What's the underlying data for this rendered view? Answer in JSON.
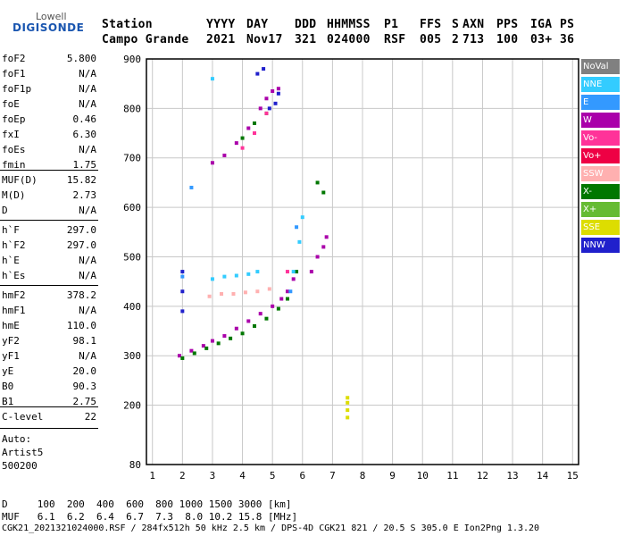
{
  "logo": {
    "top": "Lowell",
    "bottom": "DIGISONDE"
  },
  "header": {
    "labels": [
      "Station",
      "YYYY",
      "DAY",
      "DDD",
      "HHMMSS",
      "P1",
      "FFS",
      "S",
      "AXN",
      "PPS",
      "IGA",
      "PS"
    ],
    "values": [
      "Campo Grande",
      "2021",
      "Nov17",
      "321",
      "024000",
      "RSF",
      "005",
      "2",
      "713",
      "100",
      "03+",
      "36"
    ]
  },
  "params": {
    "g1": [
      {
        "k": "foF2",
        "v": "5.800"
      },
      {
        "k": "foF1",
        "v": "N/A"
      },
      {
        "k": "foF1p",
        "v": "N/A"
      },
      {
        "k": "foE",
        "v": "N/A"
      },
      {
        "k": "foEp",
        "v": "0.46"
      },
      {
        "k": "fxI",
        "v": "6.30"
      },
      {
        "k": "foEs",
        "v": "N/A"
      },
      {
        "k": "fmin",
        "v": "1.75"
      }
    ],
    "g2": [
      {
        "k": "MUF(D)",
        "v": "15.82"
      },
      {
        "k": "M(D)",
        "v": "2.73"
      },
      {
        "k": "D",
        "v": "N/A"
      }
    ],
    "g3": [
      {
        "k": "h`F",
        "v": "297.0"
      },
      {
        "k": "h`F2",
        "v": "297.0"
      },
      {
        "k": "h`E",
        "v": "N/A"
      },
      {
        "k": "h`Es",
        "v": "N/A"
      }
    ],
    "g4": [
      {
        "k": "hmF2",
        "v": "378.2"
      },
      {
        "k": "hmF1",
        "v": "N/A"
      },
      {
        "k": "hmE",
        "v": "110.0"
      },
      {
        "k": "yF2",
        "v": "98.1"
      },
      {
        "k": "yF1",
        "v": "N/A"
      },
      {
        "k": "yE",
        "v": "20.0"
      },
      {
        "k": "B0",
        "v": "90.3"
      },
      {
        "k": "B1",
        "v": "2.75"
      }
    ],
    "clevel": {
      "k": "C-level",
      "v": "22"
    },
    "auto": [
      "Auto:",
      "Artist5",
      "500200"
    ]
  },
  "legend": [
    {
      "label": "NoVal",
      "color": "#808080"
    },
    {
      "label": "NNE",
      "color": "#33ccff"
    },
    {
      "label": "E",
      "color": "#3399ff"
    },
    {
      "label": "W",
      "color": "#aa00aa"
    },
    {
      "label": "Vo-",
      "color": "#ff3399"
    },
    {
      "label": "Vo+",
      "color": "#ee0044"
    },
    {
      "label": "SSW",
      "color": "#ffb0b0"
    },
    {
      "label": "X-",
      "color": "#007700"
    },
    {
      "label": "X+",
      "color": "#66bb33"
    },
    {
      "label": "SSE",
      "color": "#dddd00"
    },
    {
      "label": "NNW",
      "color": "#2020cc"
    }
  ],
  "footer": {
    "d_row": "D     100  200  400  600  800 1000 1500 3000 [km]",
    "muf_row": "MUF   6.1  6.2  6.4  6.7  7.3  8.0 10.2 15.8 [MHz]",
    "info": "CGK21_2021321024000.RSF / 284fx512h 50 kHz 2.5 km / DPS-4D CGK21 821 / 20.5 S 305.0 E Ion2Png 1.3.20"
  },
  "chart_data": {
    "type": "scatter",
    "title": "",
    "xlabel": "",
    "ylabel": "",
    "xlim": [
      0.8,
      15.2
    ],
    "ylim": [
      80,
      900
    ],
    "x_ticks": [
      1,
      2,
      3,
      4,
      5,
      6,
      7,
      8,
      9,
      10,
      11,
      12,
      13,
      14,
      15
    ],
    "y_ticks": [
      80,
      200,
      300,
      400,
      500,
      600,
      700,
      800,
      900
    ],
    "grid": true,
    "series": [
      {
        "name": "W",
        "color": "#aa00aa",
        "points": [
          [
            1.9,
            300
          ],
          [
            2.3,
            310
          ],
          [
            2.7,
            320
          ],
          [
            3.0,
            330
          ],
          [
            3.4,
            340
          ],
          [
            3.8,
            355
          ],
          [
            4.2,
            370
          ],
          [
            4.6,
            385
          ],
          [
            5.0,
            400
          ],
          [
            5.3,
            415
          ],
          [
            5.5,
            430
          ],
          [
            5.7,
            455
          ],
          [
            6.3,
            470
          ],
          [
            6.5,
            500
          ],
          [
            6.7,
            520
          ],
          [
            6.8,
            540
          ],
          [
            3.0,
            690
          ],
          [
            3.4,
            705
          ],
          [
            3.8,
            730
          ],
          [
            4.2,
            760
          ],
          [
            4.6,
            800
          ],
          [
            4.8,
            820
          ],
          [
            5.0,
            835
          ],
          [
            5.2,
            840
          ]
        ]
      },
      {
        "name": "X-",
        "color": "#007700",
        "points": [
          [
            2.0,
            295
          ],
          [
            2.4,
            305
          ],
          [
            2.8,
            315
          ],
          [
            3.2,
            325
          ],
          [
            3.6,
            335
          ],
          [
            4.0,
            345
          ],
          [
            4.4,
            360
          ],
          [
            4.8,
            375
          ],
          [
            5.2,
            395
          ],
          [
            5.5,
            415
          ],
          [
            5.8,
            470
          ],
          [
            6.5,
            650
          ],
          [
            6.7,
            630
          ],
          [
            4.0,
            740
          ],
          [
            4.4,
            770
          ],
          [
            4.8,
            790
          ]
        ]
      },
      {
        "name": "NNE",
        "color": "#33ccff",
        "points": [
          [
            3.0,
            455
          ],
          [
            3.4,
            460
          ],
          [
            3.8,
            462
          ],
          [
            4.2,
            465
          ],
          [
            4.5,
            470
          ],
          [
            5.7,
            470
          ],
          [
            5.9,
            530
          ],
          [
            6.0,
            580
          ],
          [
            3.0,
            860
          ]
        ]
      },
      {
        "name": "E",
        "color": "#3399ff",
        "points": [
          [
            2.0,
            460
          ],
          [
            5.6,
            430
          ],
          [
            5.8,
            560
          ],
          [
            2.3,
            640
          ]
        ]
      },
      {
        "name": "SSW",
        "color": "#ffb0b0",
        "points": [
          [
            2.9,
            420
          ],
          [
            3.3,
            425
          ],
          [
            3.7,
            425
          ],
          [
            4.1,
            428
          ],
          [
            4.5,
            430
          ],
          [
            4.9,
            435
          ]
        ]
      },
      {
        "name": "Vo-",
        "color": "#ff3399",
        "points": [
          [
            5.5,
            470
          ],
          [
            4.0,
            720
          ],
          [
            4.4,
            750
          ],
          [
            4.8,
            790
          ]
        ]
      },
      {
        "name": "NNW",
        "color": "#2020cc",
        "points": [
          [
            2.0,
            470
          ],
          [
            2.0,
            430
          ],
          [
            2.0,
            390
          ],
          [
            4.5,
            870
          ],
          [
            4.7,
            880
          ],
          [
            4.9,
            800
          ],
          [
            5.1,
            810
          ],
          [
            5.2,
            830
          ]
        ]
      },
      {
        "name": "SSE",
        "color": "#dddd00",
        "points": [
          [
            7.5,
            175
          ],
          [
            7.5,
            190
          ],
          [
            7.5,
            205
          ],
          [
            7.5,
            215
          ]
        ]
      }
    ]
  }
}
